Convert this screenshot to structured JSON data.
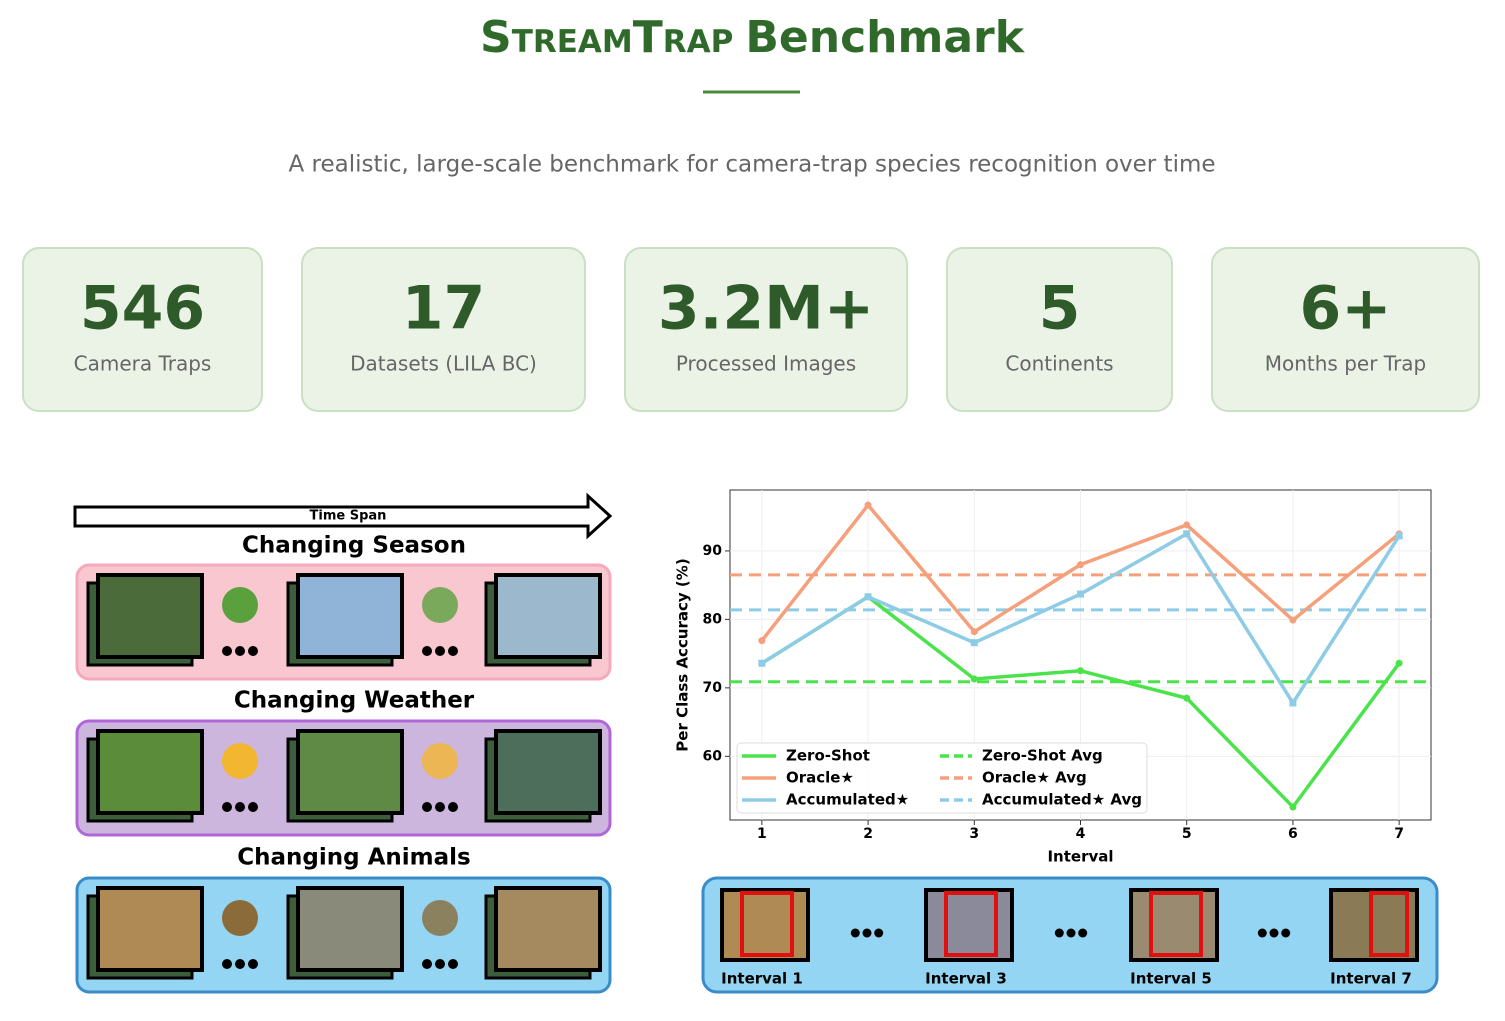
{
  "header": {
    "title_name": "StreamTrap",
    "title_rest": "Benchmark",
    "subtitle": "A realistic, large-scale benchmark for camera-trap species recognition over time"
  },
  "stats": [
    {
      "value": "546",
      "label": "Camera Traps"
    },
    {
      "value": "17",
      "label": "Datasets (LILA BC)"
    },
    {
      "value": "3.2M+",
      "label": "Processed Images"
    },
    {
      "value": "5",
      "label": "Continents"
    },
    {
      "value": "6+",
      "label": "Months per Trap"
    }
  ],
  "figure": {
    "arrow_label": "Time Span",
    "rows": [
      "Changing Season",
      "Changing Weather",
      "Changing Animals"
    ]
  },
  "chart_data": {
    "type": "line",
    "xlabel": "Interval",
    "ylabel": "Per Class Accuracy (%)",
    "x": [
      1,
      2,
      3,
      4,
      5,
      6,
      7
    ],
    "xlim": [
      0.7,
      7.3
    ],
    "xticks": [
      1,
      2,
      3,
      4,
      5,
      6,
      7
    ],
    "ylim": [
      50.7,
      98.9
    ],
    "yticks": [
      60,
      70,
      80,
      90
    ],
    "grid": true,
    "legend": "lower left",
    "series": [
      {
        "name": "Zero-Shot",
        "color": "#4be34b",
        "values": [
          73.6,
          83.3,
          71.3,
          72.5,
          68.5,
          52.6,
          73.6
        ]
      },
      {
        "name": "Oracle★",
        "color": "#f5a07a",
        "values": [
          76.9,
          96.7,
          78.2,
          88.0,
          93.8,
          79.9,
          92.5
        ]
      },
      {
        "name": "Accumulated★",
        "color": "#8dcbe6",
        "values": [
          73.6,
          83.3,
          76.6,
          83.7,
          92.5,
          67.8,
          92.2
        ]
      }
    ],
    "reference_lines": [
      {
        "name": "Zero-Shot Avg",
        "color": "#4be34b",
        "value": 70.9
      },
      {
        "name": "Oracle★ Avg",
        "color": "#f5a07a",
        "value": 86.5
      },
      {
        "name": "Accumulated★ Avg",
        "color": "#8dcbe6",
        "value": 81.4
      }
    ]
  },
  "intervals": [
    "Interval 1",
    "Interval 3",
    "Interval 5",
    "Interval 7"
  ]
}
